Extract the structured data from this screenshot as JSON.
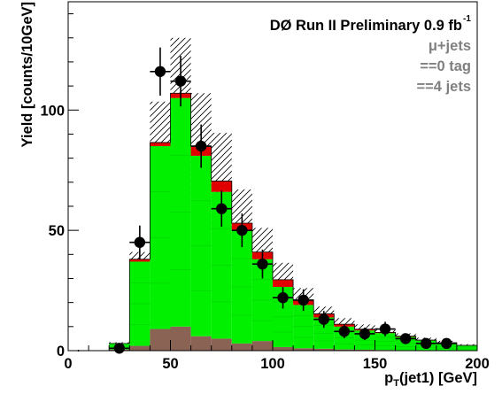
{
  "chart_data": {
    "type": "bar",
    "title_line": {
      "main": "DØ Run II Preliminary 0.9 fb",
      "sup": "-1"
    },
    "annotations": [
      "μ+jets",
      "==0 tag",
      "==4 jets"
    ],
    "xlabel": {
      "main": "p",
      "sub": "T",
      "rest": "(jet1) [GeV]"
    },
    "ylabel": "Yield [counts/10GeV]",
    "xlim": [
      0,
      200
    ],
    "ylim": [
      0,
      145
    ],
    "x_ticks": [
      0,
      50,
      100,
      150,
      200
    ],
    "y_ticks": [
      0,
      50,
      100
    ],
    "bin_width": 10,
    "bin_edges": [
      20,
      30,
      40,
      50,
      60,
      70,
      80,
      90,
      100,
      110,
      120,
      130,
      140,
      150,
      160,
      170,
      180,
      190
    ],
    "series": [
      {
        "name": "brown",
        "color": "#8b6355",
        "values": [
          0.5,
          2,
          9,
          10,
          6,
          5,
          3,
          4,
          1.5,
          1,
          0.8,
          0.5,
          0.4,
          0.3,
          0.2,
          0.2,
          0.1,
          0.1
        ]
      },
      {
        "name": "green",
        "color": "#00f000",
        "values": [
          2.5,
          35,
          76,
          95,
          75,
          61,
          47,
          34,
          25,
          18,
          13,
          9.5,
          8,
          7,
          5.5,
          4,
          3,
          2
        ]
      },
      {
        "name": "red",
        "color": "#e00000",
        "values": [
          0,
          1,
          1.5,
          2,
          4,
          4.5,
          3,
          3,
          3,
          2,
          1.5,
          1,
          0.5,
          0.3,
          0.3,
          0.2,
          0.2,
          0.1
        ]
      }
    ],
    "band_halfwidth": [
      0.5,
      3,
      17,
      23,
      22,
      20,
      14,
      10,
      7,
      5,
      3,
      2.5,
      2,
      1.5,
      1.2,
      1,
      0.8,
      0.5
    ],
    "data_points": {
      "x": [
        5,
        25,
        35,
        45,
        55,
        65,
        75,
        85,
        95,
        105,
        115,
        125,
        135,
        145,
        155,
        165,
        175,
        185
      ],
      "y": [
        0,
        1,
        45,
        116,
        112,
        85,
        59,
        50,
        36,
        22,
        21,
        13,
        8,
        7,
        9,
        5,
        3,
        3
      ],
      "err": [
        0,
        1,
        7,
        10,
        10.5,
        9,
        7.5,
        7,
        6,
        4.5,
        4.5,
        3.5,
        2.8,
        2.6,
        3,
        2.2,
        1.7,
        1.7
      ]
    }
  }
}
